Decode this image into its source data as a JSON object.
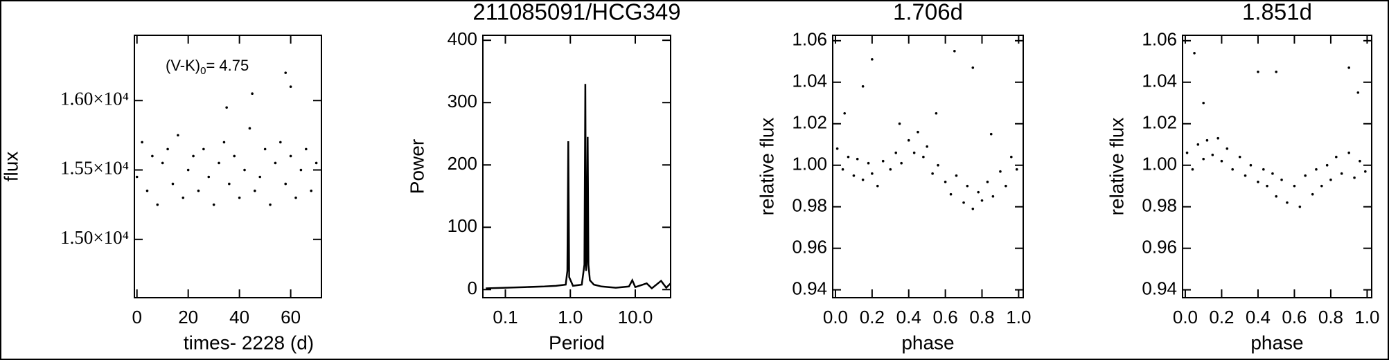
{
  "chart_data": [
    {
      "type": "scatter",
      "xlabel": "times- 2228 (d)",
      "ylabel": "flux",
      "color": "#000000",
      "annotation": [
        "(V-K)",
        "0",
        "= 4.75"
      ],
      "x": [
        0,
        2,
        4,
        6,
        8,
        10,
        12,
        14,
        16,
        18,
        20,
        22,
        24,
        26,
        28,
        30,
        32,
        34,
        36,
        38,
        40,
        42,
        44,
        46,
        48,
        50,
        52,
        54,
        56,
        58,
        60,
        62,
        64,
        66,
        68,
        70,
        45,
        58,
        60,
        35
      ],
      "values": [
        15450,
        15700,
        15350,
        15600,
        15250,
        15550,
        15650,
        15400,
        15750,
        15300,
        15500,
        15600,
        15350,
        15650,
        15450,
        15250,
        15550,
        15700,
        15400,
        15600,
        15300,
        15500,
        15800,
        15350,
        15450,
        15650,
        15250,
        15550,
        15700,
        15400,
        15600,
        15300,
        15500,
        15650,
        15350,
        15550,
        16050,
        16200,
        16100,
        15950
      ],
      "xlim": [
        -1,
        72
      ],
      "ylim": [
        14580,
        16470
      ],
      "xticks": [
        0,
        20,
        40,
        60
      ],
      "yticks": [
        {
          "value": 15000,
          "label": "1.50×10⁴"
        },
        {
          "value": 15500,
          "label": "1.55×10⁴"
        },
        {
          "value": 16000,
          "label": "1.60×10⁴"
        }
      ]
    },
    {
      "type": "line",
      "title": "211085091/HCG349",
      "xlabel": "Period",
      "ylabel": "Power",
      "color": "#000000",
      "xscale": "log",
      "x": [
        0.05,
        0.1,
        0.2,
        0.4,
        0.6,
        0.85,
        0.9,
        0.93,
        0.96,
        1.1,
        1.5,
        1.65,
        1.7,
        1.75,
        1.8,
        1.85,
        1.9,
        2.0,
        2.3,
        3,
        5,
        8,
        9,
        10,
        15,
        18,
        25,
        30,
        35
      ],
      "values": [
        2,
        3,
        4,
        5,
        6,
        8,
        30,
        238,
        20,
        6,
        8,
        40,
        330,
        30,
        50,
        245,
        40,
        15,
        8,
        5,
        3,
        5,
        15,
        4,
        10,
        2,
        14,
        3,
        10
      ],
      "xlim": [
        0.045,
        35
      ],
      "ylim": [
        -13,
        408
      ],
      "xticks": [
        0.1,
        {
          "value": 1,
          "label": "1.0"
        },
        {
          "value": 10,
          "label": "10.0"
        }
      ],
      "yticks": [
        0,
        100,
        200,
        300,
        400
      ]
    },
    {
      "type": "scatter",
      "title": "1.706d",
      "xlabel": "phase",
      "ylabel": "relative flux",
      "color": "#000000",
      "x": [
        0.01,
        0.04,
        0.07,
        0.1,
        0.12,
        0.15,
        0.18,
        0.2,
        0.23,
        0.26,
        0.3,
        0.33,
        0.36,
        0.4,
        0.43,
        0.45,
        0.48,
        0.5,
        0.53,
        0.56,
        0.6,
        0.63,
        0.66,
        0.7,
        0.72,
        0.75,
        0.78,
        0.8,
        0.83,
        0.86,
        0.9,
        0.93,
        0.96,
        0.99,
        0.05,
        0.15,
        0.2,
        0.65,
        0.75,
        0.35,
        0.55,
        0.85
      ],
      "values": [
        1.008,
        0.998,
        1.004,
        0.995,
        1.003,
        0.993,
        1.001,
        0.996,
        0.99,
        1.002,
        0.998,
        1.006,
        1.001,
        1.012,
        1.006,
        1.016,
        1.004,
        1.009,
        0.996,
        1.0,
        0.992,
        0.986,
        0.995,
        0.982,
        0.99,
        0.979,
        0.987,
        0.983,
        0.992,
        0.985,
        0.997,
        0.99,
        1.004,
        0.998,
        1.025,
        1.038,
        1.051,
        1.055,
        1.047,
        1.02,
        1.025,
        1.015
      ],
      "xlim": [
        -0.015,
        1.025
      ],
      "ylim": [
        0.9362,
        1.0626
      ],
      "xticks": [
        {
          "value": 0,
          "label": "0.0"
        },
        0.2,
        0.4,
        0.6,
        0.8,
        {
          "value": 1,
          "label": "1.0"
        }
      ],
      "yticks": [
        0.94,
        0.96,
        0.98,
        {
          "value": 1,
          "label": "1.00"
        },
        1.02,
        1.04,
        1.06
      ]
    },
    {
      "type": "scatter",
      "title": "1.851d",
      "xlabel": "phase",
      "ylabel": "relative flux",
      "color": "#000000",
      "x": [
        0.01,
        0.04,
        0.07,
        0.1,
        0.12,
        0.15,
        0.18,
        0.2,
        0.23,
        0.26,
        0.3,
        0.33,
        0.36,
        0.4,
        0.43,
        0.45,
        0.48,
        0.5,
        0.53,
        0.56,
        0.6,
        0.63,
        0.66,
        0.7,
        0.72,
        0.75,
        0.78,
        0.8,
        0.83,
        0.86,
        0.9,
        0.93,
        0.96,
        0.99,
        0.05,
        0.1,
        0.4,
        0.5,
        0.9,
        0.95
      ],
      "values": [
        1.006,
        0.998,
        1.01,
        1.003,
        1.012,
        1.005,
        1.013,
        1.002,
        1.008,
        0.998,
        1.004,
        0.995,
        1.0,
        0.992,
        0.998,
        0.99,
        0.996,
        0.985,
        0.993,
        0.982,
        0.99,
        0.98,
        0.995,
        0.986,
        0.998,
        0.99,
        1.0,
        0.993,
        1.004,
        0.996,
        1.006,
        0.994,
        1.002,
        0.997,
        1.054,
        1.03,
        1.045,
        1.045,
        1.047,
        1.035
      ],
      "xlim": [
        -0.015,
        1.025
      ],
      "ylim": [
        0.9362,
        1.0626
      ],
      "xticks": [
        {
          "value": 0,
          "label": "0.0"
        },
        0.2,
        0.4,
        0.6,
        0.8,
        {
          "value": 1,
          "label": "1.0"
        }
      ],
      "yticks": [
        0.94,
        0.96,
        0.98,
        {
          "value": 1,
          "label": "1.00"
        },
        1.02,
        1.04,
        1.06
      ]
    }
  ]
}
